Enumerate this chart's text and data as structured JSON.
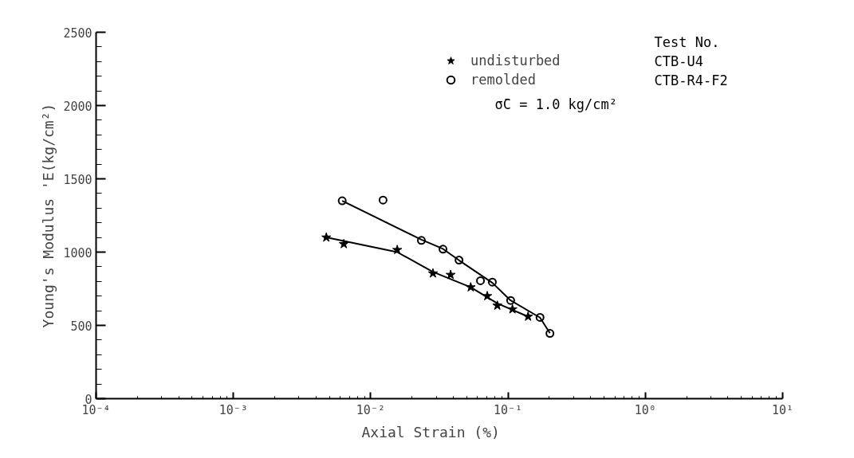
{
  "chart_data": {
    "type": "scatter",
    "xlabel": "Axial Strain   (%)",
    "ylabel": "Young's Modulus 'E(kg/cm²)",
    "log": "x",
    "grid": false,
    "legend": "top right",
    "xlim": [
      0.0001,
      10
    ],
    "ylim": [
      0,
      2500
    ],
    "xticks": [
      {
        "value": 0.0001,
        "label": "10⁻⁴"
      },
      {
        "value": 0.001,
        "label": "10⁻³"
      },
      {
        "value": 0.01,
        "label": "10⁻²"
      },
      {
        "value": 0.1,
        "label": "10⁻¹"
      },
      {
        "value": 1,
        "label": "10⁰"
      },
      {
        "value": 10,
        "label": "10¹"
      }
    ],
    "yticks": [
      0,
      500,
      1000,
      1500,
      2000,
      2500
    ],
    "annotations": [
      "Test No.",
      "CTB-U4",
      "CTB-R4-F2",
      "σ̄C = 1.0 kg/cm²"
    ],
    "series": [
      {
        "name": "undisturbed",
        "color": "#000000",
        "marker": "star",
        "x": [
          0.00475,
          0.00637,
          0.0156,
          0.0284,
          0.0382,
          0.0535,
          0.0706,
          0.0836,
          0.1077,
          0.14
        ],
        "values": [
          1100,
          1055,
          1015,
          855,
          845,
          760,
          700,
          635,
          610,
          560
        ]
      },
      {
        "name": "remolded",
        "color": "#000000",
        "marker": "circle",
        "x": [
          0.0062,
          0.0123,
          0.0234,
          0.0336,
          0.044,
          0.063,
          0.0769,
          0.1045,
          0.171,
          0.202
        ],
        "values": [
          1350,
          1355,
          1080,
          1020,
          945,
          805,
          795,
          670,
          555,
          445
        ]
      },
      {
        "type": "line",
        "color": "#000000",
        "marker": "none",
        "x": [
          0.00475,
          0.0156,
          0.0284,
          0.0535,
          0.0836,
          0.14
        ],
        "values": [
          1100,
          1000,
          865,
          760,
          650,
          560
        ]
      },
      {
        "type": "line",
        "color": "#000000",
        "marker": "none",
        "x": [
          0.0062,
          0.0234,
          0.0336,
          0.044,
          0.077,
          0.1045,
          0.171,
          0.202
        ],
        "values": [
          1350,
          1085,
          1022,
          944,
          790,
          670,
          553,
          447
        ]
      }
    ]
  }
}
